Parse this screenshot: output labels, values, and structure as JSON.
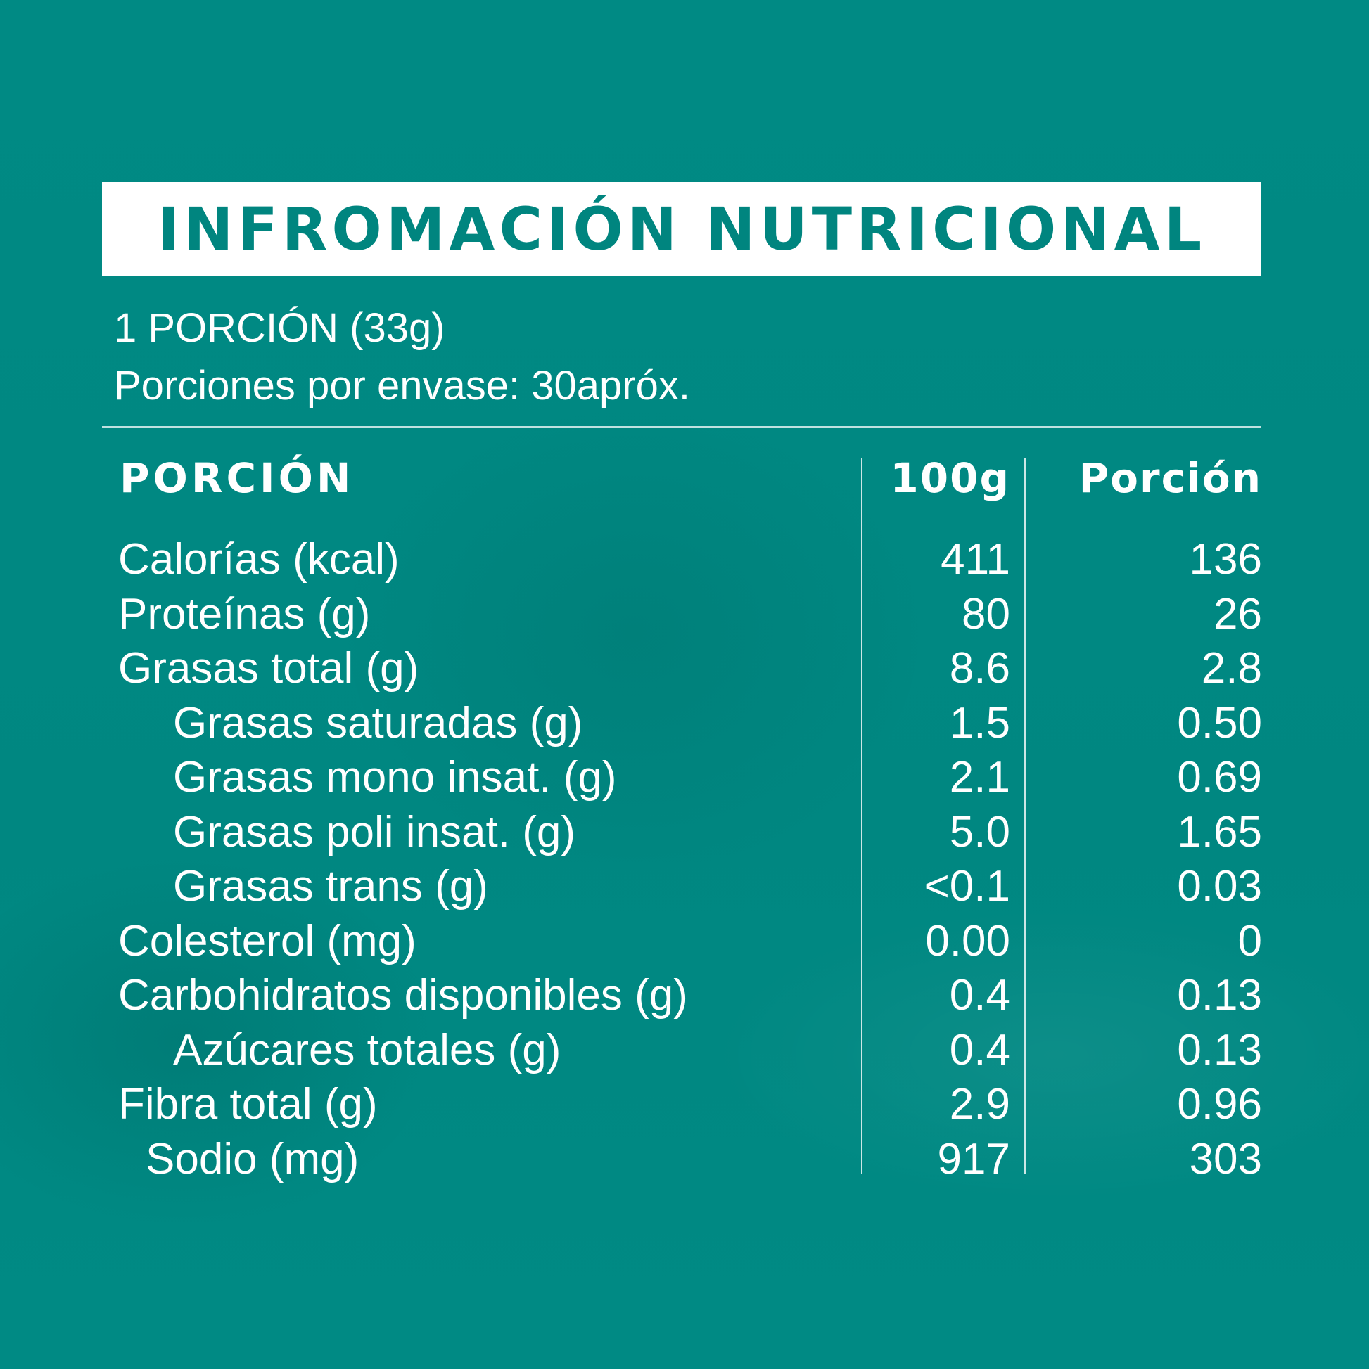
{
  "title": "INFROMACIÓN NUTRICIONAL",
  "serving": {
    "size": "1 PORCIÓN (33g)",
    "per_container": "Porciones por envase: 30apróx."
  },
  "table": {
    "headers": {
      "label": "PORCIÓN",
      "per_100g": "100g",
      "per_portion": "Porción"
    },
    "rows": [
      {
        "label": "Calorías (kcal)",
        "per_100g": "411",
        "per_portion": "136",
        "indent": 0
      },
      {
        "label": "Proteínas (g)",
        "per_100g": "80",
        "per_portion": "26",
        "indent": 0
      },
      {
        "label": "Grasas total (g)",
        "per_100g": "8.6",
        "per_portion": "2.8",
        "indent": 0
      },
      {
        "label": "Grasas saturadas (g)",
        "per_100g": "1.5",
        "per_portion": "0.50",
        "indent": 1
      },
      {
        "label": "Grasas mono insat. (g)",
        "per_100g": "2.1",
        "per_portion": "0.69",
        "indent": 1
      },
      {
        "label": "Grasas poli insat. (g)",
        "per_100g": "5.0",
        "per_portion": "1.65",
        "indent": 1
      },
      {
        "label": "Grasas trans (g)",
        "per_100g": "<0.1",
        "per_portion": "0.03",
        "indent": 1
      },
      {
        "label": "Colesterol (mg)",
        "per_100g": "0.00",
        "per_portion": "0",
        "indent": 0
      },
      {
        "label": "Carbohidratos disponibles (g)",
        "per_100g": "0.4",
        "per_portion": "0.13",
        "indent": 0
      },
      {
        "label": "Azúcares totales (g)",
        "per_100g": "0.4",
        "per_portion": "0.13",
        "indent": 1
      },
      {
        "label": "Fibra total (g)",
        "per_100g": "2.9",
        "per_portion": "0.96",
        "indent": 0
      },
      {
        "label": "Sodio (mg)",
        "per_100g": "917",
        "per_portion": "303",
        "indent": 2
      }
    ]
  },
  "colors": {
    "background": "#008a84",
    "title_text": "#00857f",
    "title_box": "#ffffff",
    "text": "#ffffff"
  }
}
